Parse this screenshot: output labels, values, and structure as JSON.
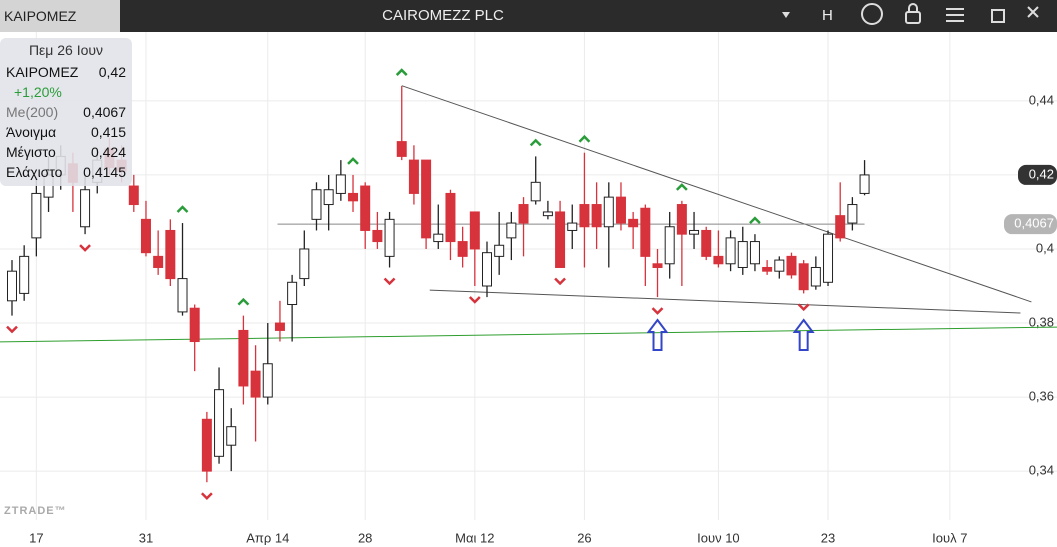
{
  "header": {
    "tab": "ΚΑΙΡΟΜΕΖ",
    "title": "CAIROMEZZ PLC",
    "button": "H"
  },
  "info": {
    "date": "Πεμ 26 Ιουν",
    "rows": [
      [
        "ΚΑΙΡΟΜΕΖ",
        "0,42"
      ],
      [
        "+1,20%",
        ""
      ],
      [
        "Me(200)",
        "0,4067"
      ],
      [
        "Άνοιγμα",
        "0,415"
      ],
      [
        "Μέγιστο",
        "0,424"
      ],
      [
        "Ελάχιστο",
        "0,4145"
      ]
    ]
  },
  "watermark": "ZTRADE™",
  "chart_data": {
    "type": "candlestick",
    "up_color": "#ffffff",
    "down_color": "#d7333c",
    "outline": "#222222",
    "grid": true,
    "xlim": [
      -2.985,
      83.8
    ],
    "ylim": [
      0.3268,
      0.4586
    ],
    "xticks": [
      {
        "value": 0,
        "label": "17"
      },
      {
        "value": 9,
        "label": "31"
      },
      {
        "value": 19,
        "label": "Απρ 14"
      },
      {
        "value": 27,
        "label": "28"
      },
      {
        "value": 36,
        "label": "Μαι 12"
      },
      {
        "value": 45,
        "label": "26"
      },
      {
        "value": 56,
        "label": "Ιουν 10"
      },
      {
        "value": 65,
        "label": "23"
      },
      {
        "value": 75,
        "label": "Ιουλ 7"
      }
    ],
    "yticks": [
      {
        "value": 0.34,
        "label": "0,34"
      },
      {
        "value": 0.36,
        "label": "0,36"
      },
      {
        "value": 0.38,
        "label": "0,38"
      },
      {
        "value": 0.4,
        "label": "0,4"
      },
      {
        "value": 0.42,
        "label": "0,42"
      },
      {
        "value": 0.44,
        "label": "0,44"
      }
    ],
    "x": [
      -2,
      -1,
      0,
      1,
      2,
      3,
      4,
      5,
      6,
      7,
      8,
      9,
      10,
      11,
      12,
      13,
      14,
      15,
      16,
      17,
      18,
      19,
      20,
      21,
      22,
      23,
      24,
      25,
      26,
      27,
      28,
      29,
      30,
      31,
      32,
      33,
      34,
      35,
      36,
      37,
      38,
      39,
      40,
      41,
      42,
      43,
      44,
      45,
      46,
      47,
      48,
      49,
      50,
      51,
      52,
      53,
      54,
      55,
      56,
      57,
      58,
      59,
      60,
      61,
      62,
      63,
      64,
      65,
      66,
      67,
      68
    ],
    "open": [
      0.386,
      0.388,
      0.403,
      0.414,
      0.42,
      0.423,
      0.406,
      0.418,
      0.427,
      0.424,
      0.417,
      0.408,
      0.398,
      0.405,
      0.383,
      0.384,
      0.354,
      0.344,
      0.347,
      0.378,
      0.367,
      0.36,
      0.38,
      0.385,
      0.392,
      0.408,
      0.412,
      0.415,
      0.415,
      0.417,
      0.405,
      0.398,
      0.429,
      0.424,
      0.424,
      0.402,
      0.415,
      0.402,
      0.41,
      0.39,
      0.398,
      0.403,
      0.412,
      0.413,
      0.409,
      0.41,
      0.405,
      0.412,
      0.412,
      0.406,
      0.414,
      0.408,
      0.411,
      0.396,
      0.396,
      0.412,
      0.404,
      0.405,
      0.398,
      0.396,
      0.395,
      0.396,
      0.395,
      0.394,
      0.398,
      0.396,
      0.39,
      0.391,
      0.409,
      0.407,
      0.415
    ],
    "high": [
      0.397,
      0.401,
      0.419,
      0.425,
      0.428,
      0.426,
      0.42,
      0.427,
      0.43,
      0.428,
      0.42,
      0.413,
      0.405,
      0.408,
      0.407,
      0.385,
      0.356,
      0.368,
      0.357,
      0.382,
      0.374,
      0.38,
      0.386,
      0.393,
      0.405,
      0.418,
      0.42,
      0.424,
      0.42,
      0.418,
      0.41,
      0.41,
      0.444,
      0.428,
      0.424,
      0.412,
      0.416,
      0.406,
      0.41,
      0.402,
      0.41,
      0.41,
      0.414,
      0.425,
      0.413,
      0.413,
      0.412,
      0.426,
      0.418,
      0.418,
      0.418,
      0.41,
      0.412,
      0.4,
      0.41,
      0.413,
      0.41,
      0.406,
      0.405,
      0.405,
      0.406,
      0.404,
      0.397,
      0.398,
      0.399,
      0.397,
      0.398,
      0.405,
      0.418,
      0.414,
      0.424
    ],
    "low": [
      0.382,
      0.386,
      0.398,
      0.41,
      0.416,
      0.41,
      0.404,
      0.415,
      0.42,
      0.418,
      0.41,
      0.398,
      0.393,
      0.39,
      0.382,
      0.367,
      0.337,
      0.342,
      0.34,
      0.358,
      0.348,
      0.358,
      0.375,
      0.375,
      0.39,
      0.405,
      0.405,
      0.413,
      0.41,
      0.4,
      0.4,
      0.395,
      0.424,
      0.412,
      0.4,
      0.4,
      0.397,
      0.395,
      0.39,
      0.387,
      0.393,
      0.397,
      0.398,
      0.412,
      0.408,
      0.395,
      0.4,
      0.395,
      0.4,
      0.395,
      0.405,
      0.4,
      0.39,
      0.387,
      0.392,
      0.39,
      0.4,
      0.397,
      0.395,
      0.394,
      0.393,
      0.394,
      0.393,
      0.392,
      0.392,
      0.388,
      0.389,
      0.39,
      0.402,
      0.405,
      0.4145
    ],
    "close": [
      0.394,
      0.398,
      0.415,
      0.42,
      0.425,
      0.418,
      0.416,
      0.424,
      0.422,
      0.421,
      0.412,
      0.399,
      0.395,
      0.392,
      0.392,
      0.375,
      0.34,
      0.362,
      0.352,
      0.363,
      0.36,
      0.369,
      0.378,
      0.391,
      0.4,
      0.416,
      0.416,
      0.42,
      0.413,
      0.405,
      0.402,
      0.408,
      0.425,
      0.415,
      0.403,
      0.404,
      0.402,
      0.398,
      0.4,
      0.399,
      0.401,
      0.407,
      0.407,
      0.418,
      0.41,
      0.395,
      0.407,
      0.406,
      0.406,
      0.414,
      0.407,
      0.406,
      0.398,
      0.395,
      0.406,
      0.404,
      0.405,
      0.398,
      0.396,
      0.403,
      0.402,
      0.402,
      0.394,
      0.397,
      0.393,
      0.389,
      0.395,
      0.404,
      0.403,
      0.412,
      0.42
    ],
    "signals": {
      "up": [
        12,
        17,
        26,
        30,
        41,
        45,
        53,
        59
      ],
      "down": [
        -2,
        4,
        14,
        29,
        36,
        43,
        51,
        63
      ],
      "up_color": "#2a9d3a",
      "down_color": "#d7333c"
    },
    "highlights": {
      "x": [
        51,
        63
      ],
      "color": "#3346c8"
    },
    "lines": [
      {
        "x": [
          30,
          81.7
        ],
        "y": [
          0.4441,
          0.3857
        ],
        "color": "#555555"
      },
      {
        "x": [
          32.3,
          80.8
        ],
        "y": [
          0.3889,
          0.3827
        ],
        "color": "#555555"
      },
      {
        "x": [
          19.8,
          68
        ],
        "y": [
          0.4067,
          0.4067
        ],
        "color": "#888888"
      },
      {
        "x": [
          -2.985,
          83.8
        ],
        "y": [
          0.3749,
          0.3789
        ],
        "color": "#2e9e2e"
      }
    ],
    "price_tags": [
      {
        "value": 0.42,
        "label": "0,42",
        "color": "#333333"
      },
      {
        "value": 0.4067,
        "label": "0,4067",
        "color": "#b5b5b5"
      }
    ]
  }
}
